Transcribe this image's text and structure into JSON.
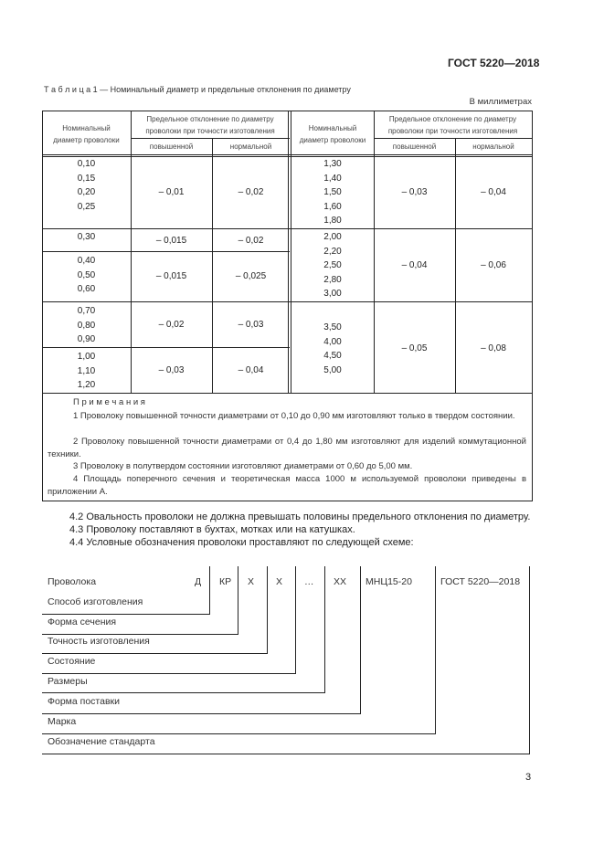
{
  "header": {
    "doc_code": "ГОСТ 5220—2018"
  },
  "table": {
    "caption": "Т а б л и ц а  1 — Номинальный диаметр и предельные отклонения по диаметру",
    "units": "В миллиметрах",
    "headers": {
      "nominal": "Номинальный\nдиаметр проволоки",
      "deviation": "Предельное отклонение по диаметру\nпроволоки при точности изготовления",
      "increased": "повышенной",
      "normal": "нормальной"
    },
    "left_rows": [
      {
        "diameters": "0,10\n0,15\n0,20\n0,25",
        "increased": "– 0,01",
        "normal": "– 0,02"
      },
      {
        "diameters": "0,30",
        "increased": "– 0,015",
        "normal": "– 0,02"
      },
      {
        "diameters": "0,40\n0,50\n0,60",
        "increased": "– 0,015",
        "normal": "– 0,025"
      },
      {
        "diameters": "0,70\n0,80\n0,90",
        "increased": "– 0,02",
        "normal": "– 0,03"
      },
      {
        "diameters": "1,00\n1,10\n1,20",
        "increased": "– 0,03",
        "normal": "– 0,04"
      }
    ],
    "right_rows": [
      {
        "diameters": "1,30\n1,40\n1,50\n1,60\n1,80",
        "increased": "– 0,03",
        "normal": "– 0,04"
      },
      {
        "diameters": "2,00\n2,20\n2,50\n2,80\n3,00",
        "increased": "– 0,04",
        "normal": "– 0,06"
      },
      {
        "diameters": "3,50\n4,00\n4,50\n5,00",
        "increased": "– 0,05",
        "normal": "– 0,08"
      }
    ],
    "notes_title": "П р и м е ч а н и я",
    "notes": [
      "1 Проволоку повышенной точности диаметрами от 0,10 до 0,90 мм изготовляют только в твердом состоянии.",
      "2 Проволоку повышенной точности диаметрами от 0,4 до 1,80 мм изготовляют для изделий коммутационной техники.",
      "3 Проволоку в полутвердом состоянии изготовляют диаметрами от 0,60 до 5,00 мм.",
      "4 Площадь поперечного сечения и теоретическая масса 1000 м используемой проволоки приведены в приложении А."
    ]
  },
  "paragraphs": [
    "4.2 Овальность проволоки не должна превышать половины предельного отклонения по диаметру.",
    "4.3 Проволоку поставляют в бухтах, мотках или на катушках.",
    "4.4 Условные обозначения проволоки проставляют по следующей схеме:"
  ],
  "scheme": {
    "title": "Проволока",
    "codes": [
      "Д",
      "КР",
      "Х",
      "Х",
      "…",
      "ХХ",
      "МНЦ15-20",
      "ГОСТ 5220—2018"
    ],
    "labels": [
      "Способ изготовления",
      "Форма сечения",
      "Точность изготовления",
      "Состояние",
      "Размеры",
      "Форма поставки",
      "Марка",
      "Обозначение стандарта"
    ]
  },
  "footer": {
    "page_number": "3"
  }
}
